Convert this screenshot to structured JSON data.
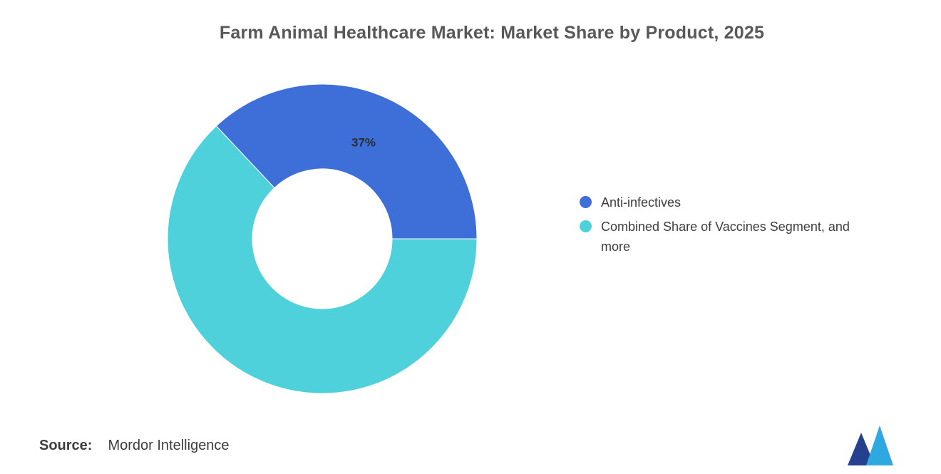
{
  "title": "Farm Animal Healthcare Market: Market Share by Product, 2025",
  "source": {
    "label": "Source:",
    "value": "Mordor Intelligence"
  },
  "logo": {
    "name": "mordor-intelligence-logo",
    "dark_color": "#24408e",
    "light_color": "#2ea9e0"
  },
  "chart_data": {
    "type": "pie",
    "subtype": "donut",
    "title": "Farm Animal Healthcare Market: Market Share by Product, 2025",
    "unit": "%",
    "slices": [
      {
        "name": "Anti-infectives",
        "value": 37,
        "label": "37%",
        "color": "#3e6fd9"
      },
      {
        "name": "Combined Share of Vaccines Segment, and more",
        "value": 63,
        "label": "",
        "color": "#4fd1db"
      }
    ],
    "legend_position": "right",
    "start_angle_deg": -43.2,
    "inner_radius_ratio": 0.45,
    "data_labels_shown_for": [
      "Anti-infectives"
    ]
  }
}
